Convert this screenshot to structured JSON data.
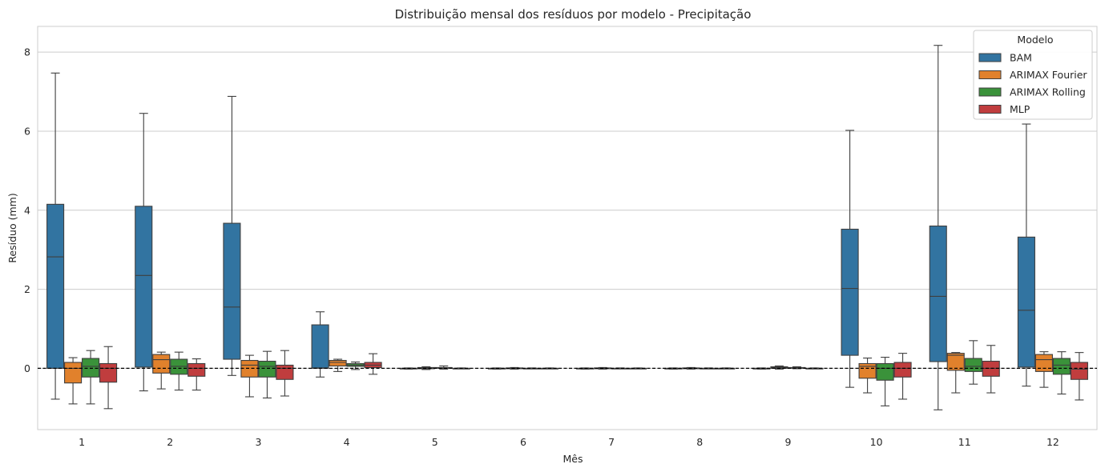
{
  "chart_data": {
    "type": "boxplot",
    "title": "Distribuição mensal dos resíduos por modelo - Precipitação",
    "xlabel": "Mês",
    "ylabel": "Resíduo (mm)",
    "ylim": [
      -1.55,
      8.65
    ],
    "yticks": [
      0,
      2,
      4,
      6,
      8
    ],
    "grid": true,
    "zero_line": "dashed black horizontal line at 0",
    "categories": [
      "1",
      "2",
      "3",
      "4",
      "5",
      "6",
      "7",
      "8",
      "9",
      "10",
      "11",
      "12"
    ],
    "legend": {
      "title": "Modelo",
      "placement": "top-right"
    },
    "series": [
      {
        "name": "BAM",
        "color": "#3274a1",
        "boxes": [
          {
            "whislo": -0.78,
            "q1": 0.0,
            "med": 2.82,
            "q3": 4.15,
            "whishi": 7.47
          },
          {
            "whislo": -0.57,
            "q1": 0.03,
            "med": 2.35,
            "q3": 4.1,
            "whishi": 6.45
          },
          {
            "whislo": -0.18,
            "q1": 0.23,
            "med": 1.55,
            "q3": 3.67,
            "whishi": 6.88
          },
          {
            "whislo": -0.22,
            "q1": 0.0,
            "med": 0.01,
            "q3": 1.1,
            "whishi": 1.43
          },
          {
            "whislo": -0.02,
            "q1": -0.01,
            "med": 0.0,
            "q3": 0.0,
            "whishi": 0.01
          },
          {
            "whislo": -0.02,
            "q1": -0.01,
            "med": 0.0,
            "q3": 0.0,
            "whishi": 0.01
          },
          {
            "whislo": -0.02,
            "q1": -0.01,
            "med": 0.0,
            "q3": 0.0,
            "whishi": 0.01
          },
          {
            "whislo": -0.02,
            "q1": -0.01,
            "med": 0.0,
            "q3": 0.0,
            "whishi": 0.01
          },
          {
            "whislo": -0.02,
            "q1": -0.01,
            "med": 0.0,
            "q3": 0.0,
            "whishi": 0.01
          },
          {
            "whislo": -0.48,
            "q1": 0.33,
            "med": 2.02,
            "q3": 3.52,
            "whishi": 6.02
          },
          {
            "whislo": -1.05,
            "q1": 0.17,
            "med": 1.82,
            "q3": 3.6,
            "whishi": 8.17
          },
          {
            "whislo": -0.45,
            "q1": 0.03,
            "med": 1.47,
            "q3": 3.32,
            "whishi": 6.18
          }
        ]
      },
      {
        "name": "ARIMAX Fourier",
        "color": "#e1812c",
        "boxes": [
          {
            "whislo": -0.9,
            "q1": -0.37,
            "med": 0.0,
            "q3": 0.15,
            "whishi": 0.27
          },
          {
            "whislo": -0.52,
            "q1": -0.12,
            "med": 0.22,
            "q3": 0.35,
            "whishi": 0.41
          },
          {
            "whislo": -0.72,
            "q1": -0.22,
            "med": 0.08,
            "q3": 0.2,
            "whishi": 0.33
          },
          {
            "whislo": -0.08,
            "q1": 0.06,
            "med": 0.15,
            "q3": 0.2,
            "whishi": 0.23
          },
          {
            "whislo": -0.03,
            "q1": -0.01,
            "med": 0.01,
            "q3": 0.02,
            "whishi": 0.04
          },
          {
            "whislo": -0.02,
            "q1": -0.01,
            "med": 0.0,
            "q3": 0.01,
            "whishi": 0.02
          },
          {
            "whislo": -0.02,
            "q1": -0.01,
            "med": 0.0,
            "q3": 0.01,
            "whishi": 0.02
          },
          {
            "whislo": -0.02,
            "q1": -0.01,
            "med": 0.0,
            "q3": 0.01,
            "whishi": 0.02
          },
          {
            "whislo": -0.02,
            "q1": 0.0,
            "med": 0.02,
            "q3": 0.04,
            "whishi": 0.06
          },
          {
            "whislo": -0.62,
            "q1": -0.25,
            "med": 0.05,
            "q3": 0.12,
            "whishi": 0.26
          },
          {
            "whislo": -0.62,
            "q1": -0.05,
            "med": 0.33,
            "q3": 0.38,
            "whishi": 0.4
          },
          {
            "whislo": -0.48,
            "q1": -0.08,
            "med": 0.22,
            "q3": 0.35,
            "whishi": 0.42
          }
        ]
      },
      {
        "name": "ARIMAX Rolling",
        "color": "#3a923a",
        "boxes": [
          {
            "whislo": -0.9,
            "q1": -0.22,
            "med": 0.05,
            "q3": 0.25,
            "whishi": 0.45
          },
          {
            "whislo": -0.55,
            "q1": -0.15,
            "med": 0.05,
            "q3": 0.23,
            "whishi": 0.41
          },
          {
            "whislo": -0.75,
            "q1": -0.22,
            "med": 0.05,
            "q3": 0.18,
            "whishi": 0.43
          },
          {
            "whislo": -0.03,
            "q1": 0.05,
            "med": 0.08,
            "q3": 0.12,
            "whishi": 0.16
          },
          {
            "whislo": -0.02,
            "q1": 0.0,
            "med": 0.01,
            "q3": 0.02,
            "whishi": 0.06
          },
          {
            "whislo": -0.01,
            "q1": 0.0,
            "med": 0.0,
            "q3": 0.0,
            "whishi": 0.01
          },
          {
            "whislo": -0.01,
            "q1": 0.0,
            "med": 0.0,
            "q3": 0.0,
            "whishi": 0.01
          },
          {
            "whislo": -0.01,
            "q1": 0.0,
            "med": 0.0,
            "q3": 0.0,
            "whishi": 0.01
          },
          {
            "whislo": -0.01,
            "q1": 0.0,
            "med": 0.01,
            "q3": 0.02,
            "whishi": 0.04
          },
          {
            "whislo": -0.95,
            "q1": -0.3,
            "med": 0.0,
            "q3": 0.12,
            "whishi": 0.28
          },
          {
            "whislo": -0.4,
            "q1": -0.08,
            "med": 0.05,
            "q3": 0.25,
            "whishi": 0.7
          },
          {
            "whislo": -0.65,
            "q1": -0.15,
            "med": 0.08,
            "q3": 0.25,
            "whishi": 0.42
          }
        ]
      },
      {
        "name": "MLP",
        "color": "#c03d3e",
        "boxes": [
          {
            "whislo": -1.02,
            "q1": -0.35,
            "med": 0.0,
            "q3": 0.12,
            "whishi": 0.55
          },
          {
            "whislo": -0.55,
            "q1": -0.2,
            "med": 0.0,
            "q3": 0.12,
            "whishi": 0.24
          },
          {
            "whislo": -0.7,
            "q1": -0.28,
            "med": 0.0,
            "q3": 0.08,
            "whishi": 0.45
          },
          {
            "whislo": -0.15,
            "q1": 0.02,
            "med": 0.08,
            "q3": 0.15,
            "whishi": 0.37
          },
          {
            "whislo": -0.01,
            "q1": 0.0,
            "med": 0.0,
            "q3": 0.0,
            "whishi": 0.01
          },
          {
            "whislo": -0.01,
            "q1": 0.0,
            "med": 0.0,
            "q3": 0.0,
            "whishi": 0.01
          },
          {
            "whislo": -0.01,
            "q1": 0.0,
            "med": 0.0,
            "q3": 0.0,
            "whishi": 0.01
          },
          {
            "whislo": -0.01,
            "q1": 0.0,
            "med": 0.0,
            "q3": 0.0,
            "whishi": 0.01
          },
          {
            "whislo": -0.01,
            "q1": 0.0,
            "med": 0.0,
            "q3": 0.0,
            "whishi": 0.01
          },
          {
            "whislo": -0.78,
            "q1": -0.22,
            "med": 0.0,
            "q3": 0.15,
            "whishi": 0.38
          },
          {
            "whislo": -0.62,
            "q1": -0.2,
            "med": 0.0,
            "q3": 0.18,
            "whishi": 0.58
          },
          {
            "whislo": -0.8,
            "q1": -0.28,
            "med": -0.02,
            "q3": 0.15,
            "whishi": 0.4
          }
        ]
      }
    ]
  }
}
